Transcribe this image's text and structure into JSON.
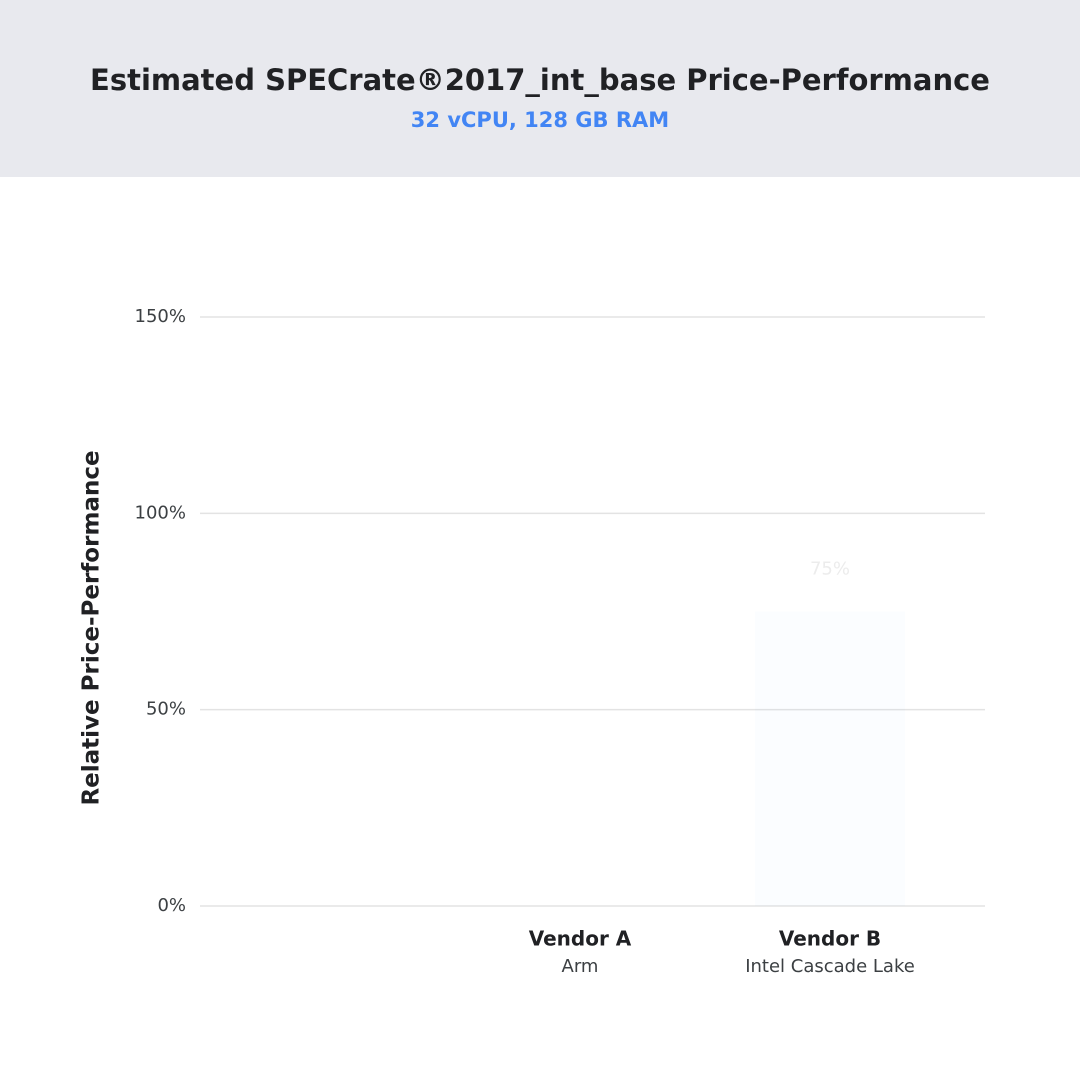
{
  "chart_data": {
    "type": "bar",
    "title": "Estimated SPECrate®2017_int_base Price-Performance",
    "subtitle": "32 vCPU, 128 GB RAM",
    "y_label": "Relative Price-Performance",
    "categories": [
      null,
      "Vendor A",
      "Vendor B"
    ],
    "category_details": [
      null,
      "Arm",
      "Intel Cascade Lake"
    ],
    "values": [
      null,
      null,
      75
    ],
    "value_labels": [
      null,
      null,
      "75%"
    ],
    "color": "#4285f4",
    "ylim": [
      0,
      150
    ],
    "yticks": [
      {
        "value": 0,
        "label": "0%"
      },
      {
        "value": 50,
        "label": "50%"
      },
      {
        "value": 100,
        "label": "100%"
      },
      {
        "value": 150,
        "label": "150%"
      }
    ],
    "grid": true
  }
}
